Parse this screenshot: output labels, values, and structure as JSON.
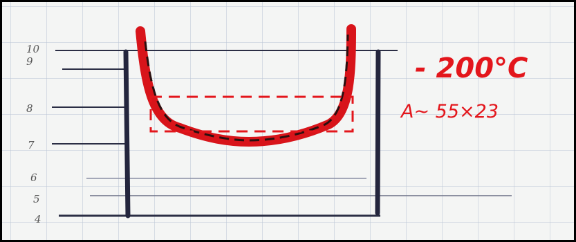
{
  "scale_labels": [
    "10",
    "9",
    "8",
    "7",
    "6",
    "5",
    "4"
  ],
  "annotations": {
    "temperature": "- 200°C",
    "area": "A~ 55×23"
  }
}
